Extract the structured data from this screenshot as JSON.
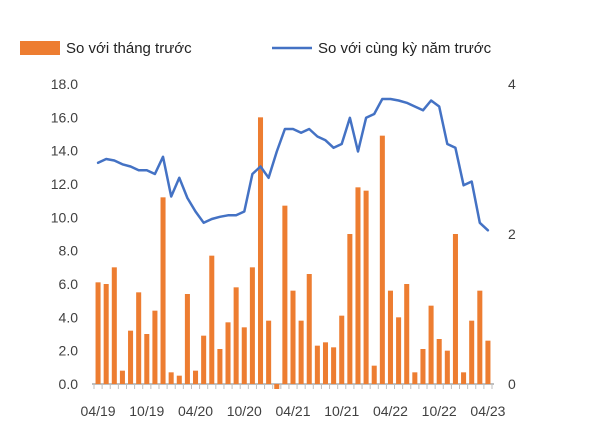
{
  "chart_data": {
    "type": "bar",
    "title": "",
    "xlabel": "",
    "ylabel": "",
    "ylim": [
      0,
      18
    ],
    "y2lim": [
      0,
      4
    ],
    "yticks": [
      "0.0",
      "2.0",
      "4.0",
      "6.0",
      "8.0",
      "10.0",
      "12.0",
      "14.0",
      "16.0",
      "18.0"
    ],
    "y2ticks": [
      {
        "value": 0,
        "label": "0"
      },
      {
        "value": 2,
        "label": "2"
      },
      {
        "value": 4,
        "label": "4"
      }
    ],
    "xticks": [
      "04/19",
      "10/19",
      "04/20",
      "10/20",
      "04/21",
      "10/21",
      "04/22",
      "10/22",
      "04/23"
    ],
    "legend_position": "top",
    "categories": [
      "04/19",
      "05/19",
      "06/19",
      "07/19",
      "08/19",
      "09/19",
      "10/19",
      "11/19",
      "12/19",
      "01/20",
      "02/20",
      "03/20",
      "04/20",
      "05/20",
      "06/20",
      "07/20",
      "08/20",
      "09/20",
      "10/20",
      "11/20",
      "12/20",
      "01/21",
      "02/21",
      "03/21",
      "04/21",
      "05/21",
      "06/21",
      "07/21",
      "08/21",
      "09/21",
      "10/21",
      "11/21",
      "12/21",
      "01/22",
      "02/22",
      "03/22",
      "04/22",
      "05/22",
      "06/22",
      "07/22",
      "08/22",
      "09/22",
      "10/22",
      "11/22",
      "12/22",
      "01/23",
      "02/23",
      "03/23",
      "04/23"
    ],
    "series": [
      {
        "name": "So với tháng trước",
        "kind": "bar",
        "axis": "left",
        "color": "#ED7D31",
        "values": [
          6.1,
          6.0,
          7.0,
          0.8,
          3.2,
          5.5,
          3.0,
          4.4,
          11.2,
          0.7,
          0.5,
          5.4,
          0.8,
          2.9,
          7.7,
          2.1,
          3.7,
          5.8,
          3.4,
          7.0,
          16.0,
          3.8,
          -0.3,
          10.7,
          5.6,
          3.8,
          6.6,
          2.3,
          2.5,
          2.2,
          4.1,
          9.0,
          11.8,
          11.6,
          1.1,
          14.9,
          5.6,
          4.0,
          6.0,
          0.7,
          2.1,
          4.7,
          2.7,
          2.0,
          9.0,
          0.7,
          3.8,
          5.6,
          2.6
        ]
      },
      {
        "name": "So với cùng kỳ năm trước",
        "kind": "line",
        "axis": "right",
        "color": "#4472C4",
        "values": [
          2.95,
          3.0,
          2.98,
          2.93,
          2.9,
          2.85,
          2.85,
          2.8,
          3.03,
          2.5,
          2.75,
          2.48,
          2.3,
          2.15,
          2.2,
          2.23,
          2.25,
          2.25,
          2.3,
          2.8,
          2.9,
          2.75,
          3.1,
          3.4,
          3.4,
          3.35,
          3.4,
          3.3,
          3.25,
          3.15,
          3.2,
          3.55,
          3.1,
          3.55,
          3.6,
          3.8,
          3.8,
          3.78,
          3.75,
          3.7,
          3.65,
          3.78,
          3.7,
          3.2,
          3.15,
          2.65,
          2.7,
          2.15,
          2.05
        ]
      }
    ]
  }
}
